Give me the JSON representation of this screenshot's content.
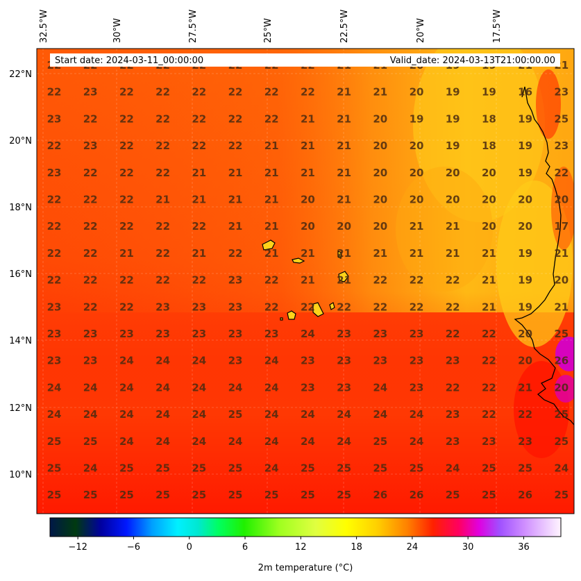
{
  "header": {
    "start_date": "Start date: 2024-03-11_00:00:00",
    "valid_date": "Valid_date: 2024-03-13T21:00:00.00"
  },
  "map": {
    "lon_labels": [
      "32.5°W",
      "30°W",
      "27.5°W",
      "25°W",
      "22.5°W",
      "20°W",
      "17.5°W"
    ],
    "lat_labels": [
      "22°N",
      "20°N",
      "18°N",
      "16°N",
      "14°N",
      "12°N",
      "10°N"
    ],
    "lon_range": [
      -32.5,
      -15.5
    ],
    "lat_range": [
      8.9,
      22.7
    ],
    "grid_values": [
      [
        22,
        22,
        22,
        22,
        22,
        22,
        22,
        22,
        21,
        21,
        20,
        19,
        19,
        21,
        21
      ],
      [
        22,
        23,
        22,
        22,
        22,
        22,
        22,
        22,
        21,
        21,
        20,
        19,
        19,
        16,
        23
      ],
      [
        23,
        22,
        22,
        22,
        22,
        22,
        22,
        21,
        21,
        20,
        19,
        19,
        18,
        19,
        25
      ],
      [
        22,
        23,
        22,
        22,
        22,
        22,
        21,
        21,
        21,
        20,
        20,
        19,
        18,
        19,
        23
      ],
      [
        23,
        22,
        22,
        22,
        21,
        21,
        21,
        21,
        21,
        20,
        20,
        20,
        20,
        19,
        22
      ],
      [
        22,
        22,
        22,
        21,
        21,
        21,
        21,
        20,
        21,
        20,
        20,
        20,
        20,
        20,
        20
      ],
      [
        22,
        22,
        22,
        22,
        22,
        21,
        21,
        20,
        20,
        20,
        21,
        21,
        20,
        20,
        17
      ],
      [
        22,
        22,
        21,
        22,
        21,
        22,
        21,
        21,
        21,
        21,
        21,
        21,
        21,
        19,
        21
      ],
      [
        22,
        22,
        22,
        22,
        22,
        23,
        22,
        21,
        21,
        22,
        22,
        22,
        21,
        19,
        20
      ],
      [
        23,
        22,
        22,
        23,
        23,
        23,
        22,
        22,
        22,
        22,
        22,
        22,
        21,
        19,
        21
      ],
      [
        23,
        23,
        23,
        23,
        23,
        23,
        23,
        24,
        23,
        23,
        23,
        22,
        22,
        20,
        25
      ],
      [
        23,
        23,
        24,
        24,
        24,
        23,
        24,
        23,
        23,
        23,
        23,
        23,
        22,
        20,
        26
      ],
      [
        24,
        24,
        24,
        24,
        24,
        24,
        24,
        23,
        23,
        24,
        23,
        22,
        22,
        21,
        20
      ],
      [
        24,
        24,
        24,
        24,
        24,
        25,
        24,
        24,
        24,
        24,
        24,
        23,
        22,
        22,
        25
      ],
      [
        25,
        25,
        24,
        24,
        24,
        24,
        24,
        24,
        24,
        25,
        24,
        23,
        23,
        23,
        25
      ],
      [
        25,
        24,
        25,
        25,
        25,
        25,
        24,
        25,
        25,
        25,
        25,
        24,
        25,
        25,
        24
      ],
      [
        25,
        25,
        25,
        25,
        25,
        25,
        25,
        25,
        25,
        26,
        26,
        25,
        25,
        26,
        25
      ]
    ]
  },
  "colorbar": {
    "ticks": [
      "−12",
      "−6",
      "0",
      "6",
      "12",
      "18",
      "24",
      "30",
      "36"
    ],
    "tick_values": [
      -12,
      -6,
      0,
      6,
      12,
      18,
      24,
      30,
      36
    ],
    "range": [
      -15,
      40
    ],
    "label": "2m temperature (°C)"
  },
  "colors": {
    "land_outline": "#000000",
    "island_fill": "#ffd21a"
  }
}
